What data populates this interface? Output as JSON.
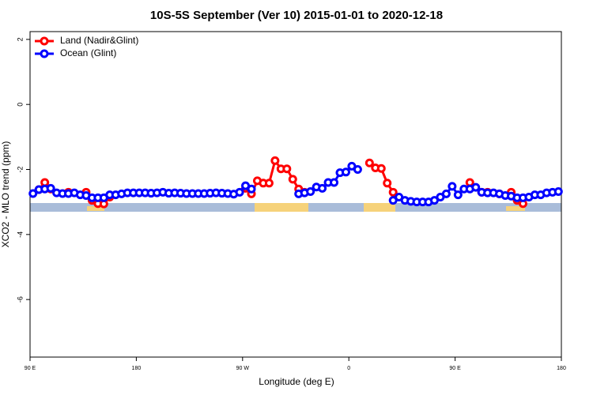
{
  "chart_data": {
    "type": "line",
    "title": "10S-5S September (Ver 10)   2015-01-01 to 2020-12-18",
    "xlabel": "Longitude (deg E)",
    "ylabel": "XCO2 - MLO trend (ppm)",
    "xlim": [
      90,
      540
    ],
    "ylim": [
      -7.77,
      2.24
    ],
    "xticks": [
      {
        "value": 90,
        "label": "90 E"
      },
      180,
      {
        "value": 270,
        "label": "90 W"
      },
      {
        "value": 360,
        "label": "0"
      },
      {
        "value": 450,
        "label": "90 E"
      },
      {
        "value": 540,
        "label": "180"
      }
    ],
    "yticks": [
      -6,
      -4,
      -2,
      0,
      2
    ],
    "legend": "top-left",
    "x": [
      92.5,
      97.5,
      102.5,
      107.5,
      112.5,
      117.5,
      122.5,
      127.5,
      132.5,
      137.5,
      142.5,
      147.5,
      152.5,
      157.5,
      162.5,
      167.5,
      172.5,
      177.5,
      182.5,
      187.5,
      192.5,
      197.5,
      202.5,
      207.5,
      212.5,
      217.5,
      222.5,
      227.5,
      232.5,
      237.5,
      242.5,
      247.5,
      252.5,
      257.5,
      262.5,
      267.5,
      272.5,
      277.5,
      282.5,
      287.5,
      292.5,
      297.5,
      302.5,
      307.5,
      312.5,
      317.5,
      322.5,
      327.5,
      332.5,
      337.5,
      342.5,
      347.5,
      352.5,
      357.5,
      362.5,
      367.5,
      372.5,
      377.5,
      382.5,
      387.5,
      392.5,
      397.5,
      402.5,
      407.5,
      412.5,
      417.5,
      422.5,
      427.5,
      432.5,
      437.5,
      442.5,
      447.5,
      452.5,
      457.5,
      462.5,
      467.5,
      472.5,
      477.5,
      482.5,
      487.5,
      492.5,
      497.5,
      502.5,
      507.5,
      512.5,
      517.5,
      522.5,
      527.5,
      532.5,
      537.5
    ],
    "series": [
      {
        "name": "Land (Nadir&Glint)",
        "color": "#ff0000",
        "values": [
          null,
          -2.62,
          -2.4,
          -2.6,
          null,
          null,
          -2.7,
          null,
          null,
          -2.7,
          -2.95,
          -3.05,
          -3.06,
          -2.85,
          null,
          null,
          null,
          null,
          null,
          null,
          null,
          null,
          null,
          null,
          null,
          null,
          null,
          null,
          null,
          null,
          null,
          null,
          null,
          null,
          null,
          null,
          -2.58,
          -2.75,
          -2.35,
          -2.42,
          -2.42,
          -1.73,
          -1.98,
          -1.98,
          -2.3,
          -2.6,
          -2.7,
          null,
          null,
          null,
          null,
          null,
          null,
          null,
          null,
          null,
          null,
          -1.8,
          -1.95,
          -1.97,
          -2.42,
          -2.7,
          null,
          null,
          null,
          null,
          null,
          null,
          null,
          null,
          null,
          null,
          null,
          null,
          -2.4,
          null,
          -2.7,
          -2.7,
          null,
          -2.75,
          null,
          -2.7,
          -2.95,
          -3.05,
          null,
          null,
          null,
          null,
          null,
          null
        ]
      },
      {
        "name": "Ocean (Glint)",
        "color": "#0000ff",
        "values": [
          -2.74,
          -2.62,
          -2.6,
          -2.58,
          -2.72,
          -2.74,
          -2.74,
          -2.72,
          -2.78,
          -2.8,
          -2.87,
          -2.87,
          -2.87,
          -2.78,
          -2.78,
          -2.75,
          -2.72,
          -2.72,
          -2.72,
          -2.72,
          -2.73,
          -2.72,
          -2.7,
          -2.73,
          -2.72,
          -2.73,
          -2.74,
          -2.74,
          -2.74,
          -2.74,
          -2.73,
          -2.72,
          -2.73,
          -2.74,
          -2.76,
          -2.7,
          -2.5,
          -2.6,
          null,
          null,
          null,
          null,
          null,
          null,
          null,
          -2.75,
          -2.72,
          -2.68,
          -2.54,
          -2.58,
          -2.4,
          -2.4,
          -2.1,
          -2.08,
          -1.9,
          -2.0,
          null,
          null,
          null,
          null,
          null,
          -2.95,
          -2.85,
          -2.95,
          -2.98,
          -3.0,
          -3.0,
          -3.0,
          -2.95,
          -2.85,
          -2.75,
          -2.52,
          -2.78,
          -2.6,
          -2.6,
          -2.55,
          -2.7,
          -2.72,
          -2.72,
          -2.75,
          -2.8,
          -2.82,
          -2.87,
          -2.87,
          -2.85,
          -2.78,
          -2.78,
          -2.72,
          -2.7,
          -2.68
        ]
      }
    ]
  }
}
